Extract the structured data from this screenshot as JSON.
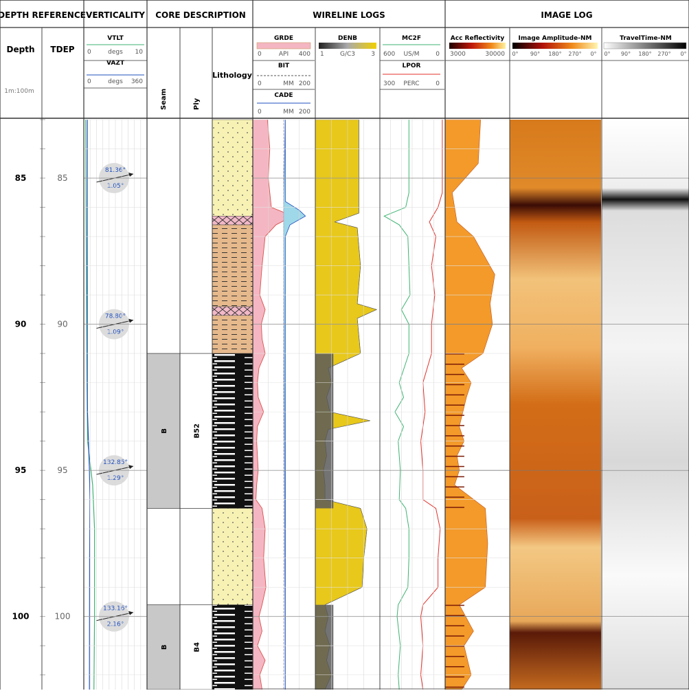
{
  "sections": {
    "depth_reference": "DEPTH REFERENCE",
    "verticality": "VERTICALITY",
    "core_description": "CORE DESCRIPTION",
    "wireline_logs": "WIRELINE LOGS",
    "image_log": "IMAGE LOG"
  },
  "depth_track": {
    "depth_label": "Depth",
    "tdep_label": "TDEP",
    "scale_label": "1m:100m"
  },
  "curve_headers": {
    "vtlt": {
      "name": "VTLT",
      "min": "0",
      "unit": "degs",
      "max": "10"
    },
    "vazt": {
      "name": "VAZT",
      "min": "0",
      "unit": "degs",
      "max": "360"
    },
    "grde": {
      "name": "GRDE",
      "min": "0",
      "unit": "API",
      "max": "400"
    },
    "bit": {
      "name": "BIT",
      "min": "0",
      "unit": "MM",
      "max": "200"
    },
    "cade": {
      "name": "CADE",
      "min": "0",
      "unit": "MM",
      "max": "200"
    },
    "denb": {
      "name": "DENB",
      "min": "1",
      "unit": "G/C3",
      "max": "3"
    },
    "mc2f": {
      "name": "MC2F",
      "min": "600",
      "unit": "US/M",
      "max": "0"
    },
    "lpor": {
      "name": "LPOR",
      "min": "300",
      "unit": "PERC",
      "max": "0"
    },
    "acc": {
      "name": "Acc Reflectivity",
      "min": "3000",
      "max": "30000"
    },
    "amp": {
      "name": "Image Amplitude-NM",
      "ticks": [
        "0°",
        "90°",
        "180°",
        "270°",
        "0°"
      ]
    },
    "tt": {
      "name": "TravelTime-NM",
      "ticks": [
        "0°",
        "90°",
        "180°",
        "270°",
        "0°"
      ]
    }
  },
  "core_headers": {
    "seam": "Seam",
    "ply": "Ply",
    "lithology": "Lithology"
  },
  "colors": {
    "grde_fill": "#f4b6c2",
    "grde_line": "#d9534f",
    "cade_line": "#1f4fbf",
    "denb_fill": "#e8c81a",
    "mc2f_line": "#3cb371",
    "lpor_line": "#e0302a",
    "vtlt_line": "#3cb371",
    "vazt_line": "#1f4fbf",
    "sandstone": "#f7f2b4",
    "siltstone": "#e6b98c",
    "coal": "#111111",
    "seam_fill": "#c8c8c8"
  },
  "chart_data": {
    "type": "well_log",
    "depth_range": [
      83,
      102.5
    ],
    "depth_ticks": [
      85,
      90,
      95,
      100
    ],
    "seams": [
      {
        "label": "B",
        "top": 91.0,
        "base": 96.3
      },
      {
        "label": "B",
        "top": 99.6,
        "base": 102.5
      }
    ],
    "plies": [
      {
        "label": "B52",
        "top": 91.0,
        "base": 96.3
      },
      {
        "label": "B4",
        "top": 99.6,
        "base": 102.5
      }
    ],
    "lithology": [
      {
        "type": "sandstone",
        "top": 83.0,
        "base": 86.3
      },
      {
        "type": "carbonaceous",
        "top": 86.3,
        "base": 86.6
      },
      {
        "type": "siltstone",
        "top": 86.6,
        "base": 89.4
      },
      {
        "type": "carbonaceous",
        "top": 89.4,
        "base": 89.7
      },
      {
        "type": "siltstone",
        "top": 89.7,
        "base": 91.0
      },
      {
        "type": "coal",
        "top": 91.0,
        "base": 96.3
      },
      {
        "type": "sandstone",
        "top": 96.3,
        "base": 99.6
      },
      {
        "type": "coal",
        "top": 99.6,
        "base": 102.5
      }
    ],
    "dip_annotations": [
      {
        "depth": 85,
        "azimuth": "81.36°",
        "dip": "1.05°"
      },
      {
        "depth": 90,
        "azimuth": "78.80°",
        "dip": "1.09°"
      },
      {
        "depth": 95,
        "azimuth": "132.85°",
        "dip": "1.29°"
      },
      {
        "depth": 100,
        "azimuth": "133.16°",
        "dip": "2.16°"
      }
    ],
    "vtlt": {
      "depth": [
        83,
        88,
        92,
        94,
        95.5,
        97,
        100,
        102.5
      ],
      "value": [
        0.3,
        0.4,
        0.5,
        0.6,
        1.4,
        1.7,
        1.7,
        1.6
      ]
    },
    "vazt": {
      "depth": [
        83,
        88,
        92,
        93,
        95,
        96,
        98,
        102.5
      ],
      "value": [
        20,
        20,
        20,
        21,
        32,
        35,
        33,
        32
      ]
    },
    "grde": {
      "depth": [
        83,
        84,
        85,
        86,
        86.3,
        86.6,
        87,
        88,
        89,
        89.5,
        90,
        90.5,
        91,
        91.5,
        92,
        92.5,
        93,
        93.5,
        94,
        94.5,
        95,
        95.5,
        96,
        96.3,
        97,
        98,
        99,
        99.6,
        100,
        100.5,
        101,
        101.5,
        102,
        102.5
      ],
      "value": [
        95,
        110,
        100,
        120,
        260,
        150,
        80,
        60,
        45,
        80,
        55,
        60,
        80,
        40,
        30,
        35,
        70,
        30,
        25,
        30,
        35,
        25,
        20,
        60,
        80,
        70,
        85,
        60,
        40,
        60,
        30,
        80,
        45,
        60
      ]
    },
    "cade": {
      "depth": [
        83,
        85.8,
        86.1,
        86.3,
        86.6,
        87,
        102.5
      ],
      "value": [
        105,
        105,
        150,
        170,
        120,
        105,
        105
      ]
    },
    "bit": {
      "value": 100
    },
    "denb": {
      "depth": [
        83,
        86.2,
        86.5,
        86.7,
        88,
        89.3,
        89.5,
        89.8,
        91,
        91.5,
        92,
        92.5,
        93,
        93.3,
        93.6,
        94,
        94.5,
        95,
        95.5,
        96,
        96.3,
        97,
        98,
        99,
        99.6,
        100,
        100.5,
        101,
        101.5,
        102,
        102.5
      ],
      "value": [
        2.35,
        2.35,
        1.6,
        2.3,
        2.4,
        2.3,
        2.9,
        2.3,
        2.4,
        1.4,
        1.5,
        1.35,
        1.45,
        2.7,
        1.4,
        1.3,
        1.35,
        1.25,
        1.3,
        1.3,
        2.4,
        2.6,
        2.5,
        2.45,
        1.3,
        1.4,
        1.3,
        1.45,
        1.35,
        1.5,
        1.3
      ]
    },
    "mc2f": {
      "depth": [
        83,
        85.5,
        86,
        86.3,
        86.6,
        87,
        88,
        89,
        89.5,
        90,
        91,
        92,
        92.5,
        93,
        93.5,
        94,
        95,
        96,
        96.3,
        97,
        98,
        99,
        99.6,
        100,
        101,
        102,
        102.5
      ],
      "value": [
        330,
        330,
        360,
        560,
        420,
        340,
        330,
        320,
        400,
        330,
        330,
        420,
        380,
        460,
        380,
        430,
        410,
        420,
        360,
        330,
        330,
        340,
        430,
        440,
        410,
        430,
        420
      ]
    },
    "lpor": {
      "depth": [
        83,
        85.5,
        86,
        86.5,
        87,
        88,
        89,
        90,
        91,
        92,
        93,
        94,
        95,
        96,
        96.3,
        97,
        98,
        99,
        99.6,
        100,
        101,
        102,
        102.5
      ],
      "value": [
        10,
        10,
        30,
        70,
        40,
        60,
        45,
        60,
        60,
        100,
        90,
        110,
        100,
        100,
        40,
        20,
        30,
        30,
        100,
        110,
        100,
        110,
        100
      ]
    },
    "acc_reflectivity": {
      "depth": [
        83,
        84.5,
        85.5,
        86.5,
        87,
        88.3,
        89.3,
        90,
        91,
        91.5,
        92,
        92.5,
        93.5,
        94,
        94.5,
        95,
        95.5,
        96.3,
        97.5,
        99,
        99.6,
        100.5,
        101,
        102,
        102.5
      ],
      "value": [
        18000,
        17000,
        6000,
        8000,
        15000,
        24000,
        22000,
        23000,
        19000,
        10000,
        14000,
        12000,
        9000,
        11000,
        8000,
        9000,
        7000,
        20000,
        21000,
        20000,
        9000,
        15000,
        11000,
        14000,
        10000
      ]
    }
  }
}
